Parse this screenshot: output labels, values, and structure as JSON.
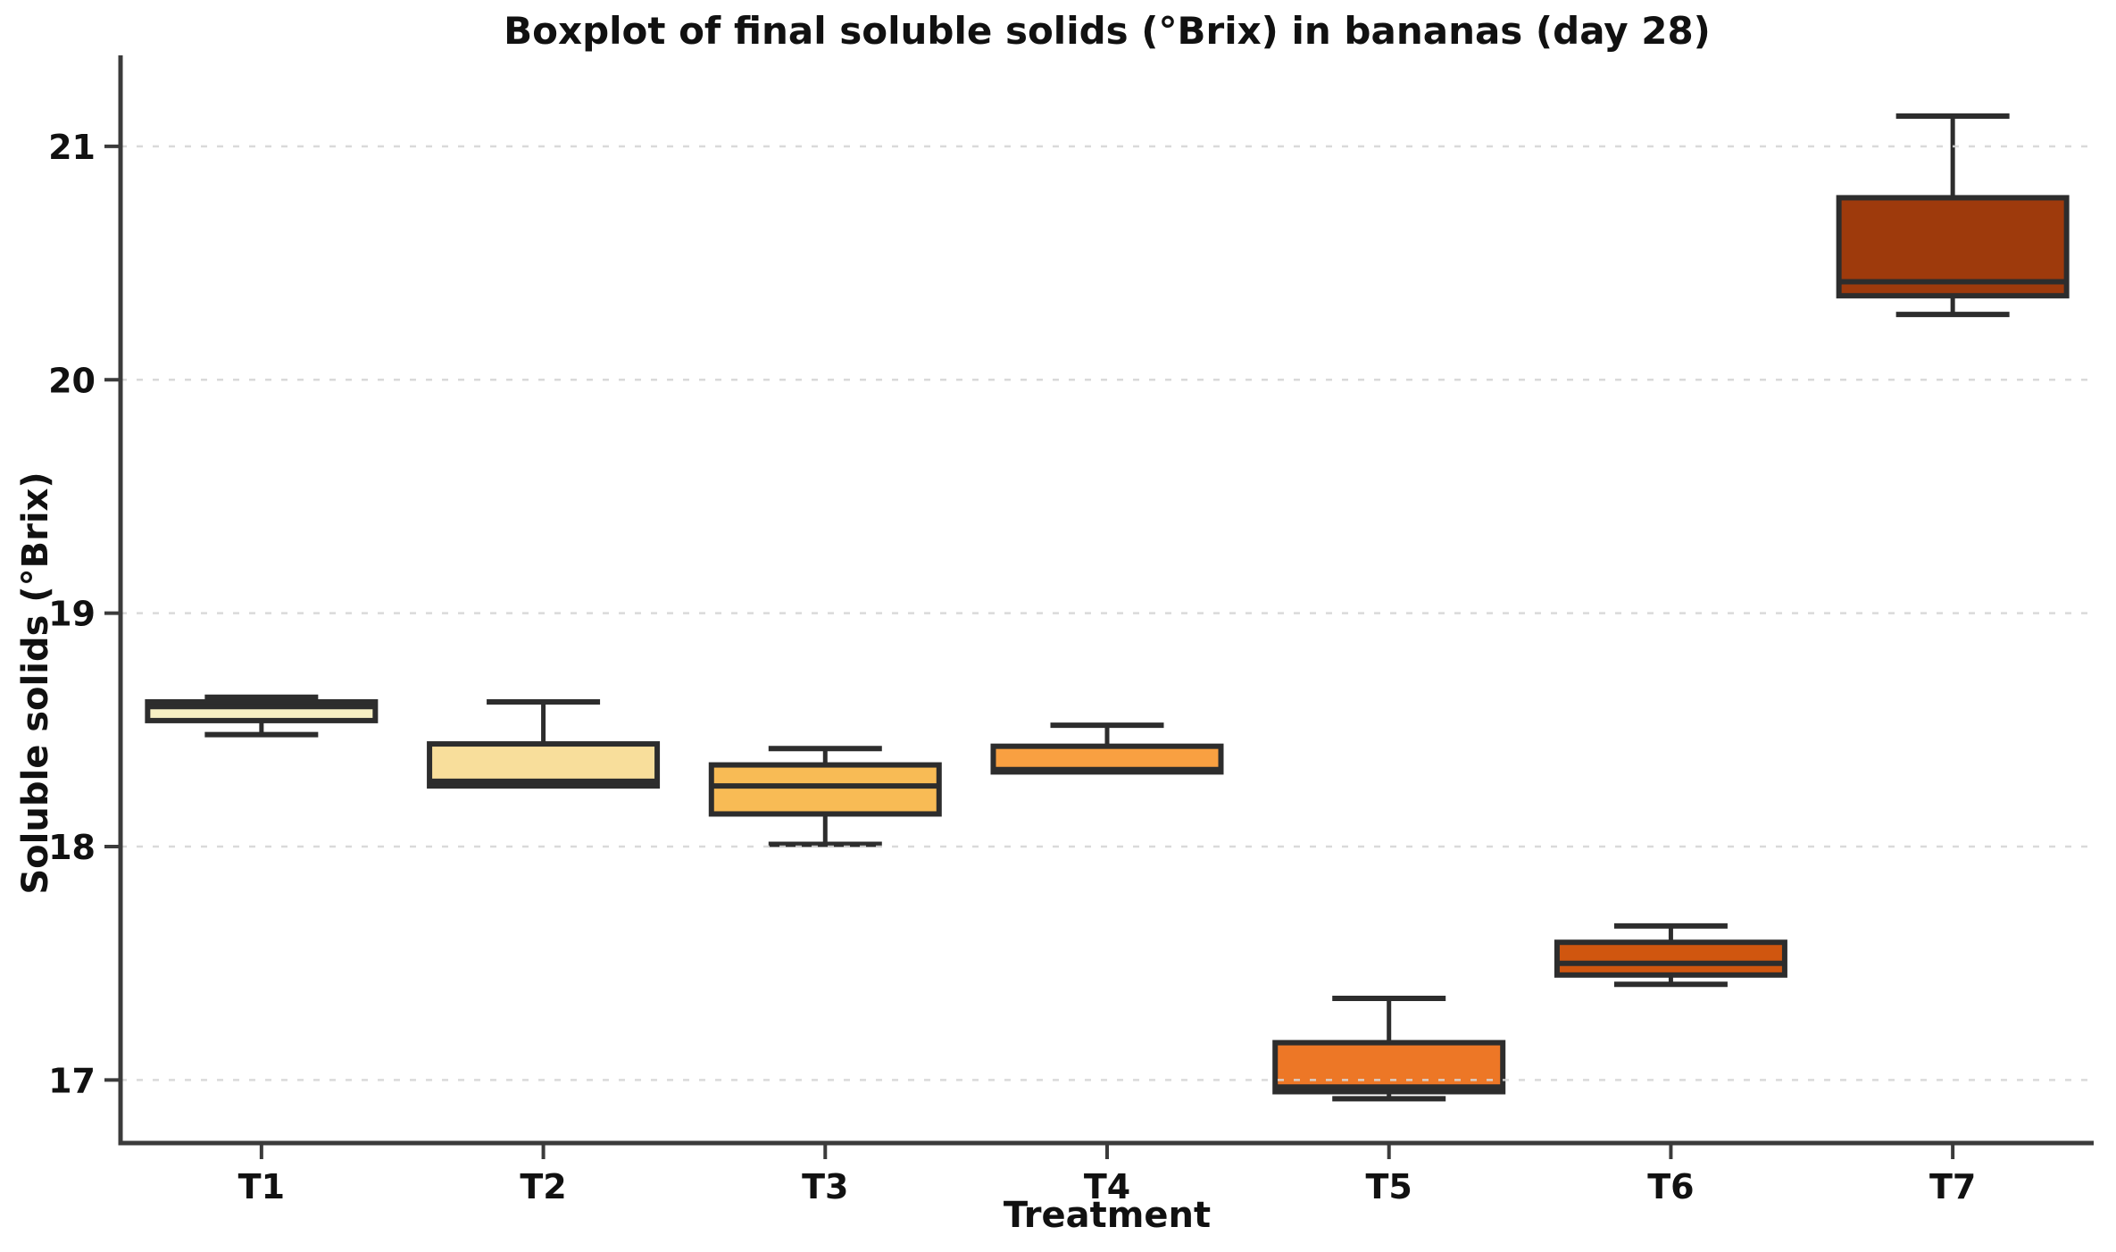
{
  "chart_data": {
    "type": "boxplot",
    "title": "Boxplot of final soluble solids (°Brix) in bananas (day 28)",
    "xlabel": "Treatment",
    "ylabel": "Soluble solids (°Brix)",
    "categories": [
      "T1",
      "T2",
      "T3",
      "T4",
      "T5",
      "T6",
      "T7"
    ],
    "yticks": [
      17,
      18,
      19,
      20,
      21
    ],
    "ylim": [
      16.73,
      21.39
    ],
    "grid": "horizontal-dashed-on-top",
    "legend": "none",
    "series": [
      {
        "category": "T1",
        "whisker_low": 18.48,
        "q1": 18.54,
        "median": 18.6,
        "q3": 18.62,
        "whisker_high": 18.64,
        "color": "#F6EFC3"
      },
      {
        "category": "T2",
        "whisker_low": 18.26,
        "q1": 18.26,
        "median": 18.28,
        "q3": 18.44,
        "whisker_high": 18.62,
        "color": "#F8DE9B"
      },
      {
        "category": "T3",
        "whisker_low": 18.01,
        "q1": 18.14,
        "median": 18.26,
        "q3": 18.35,
        "whisker_high": 18.42,
        "color": "#F8BB55"
      },
      {
        "category": "T4",
        "whisker_low": 18.32,
        "q1": 18.32,
        "median": 18.33,
        "q3": 18.43,
        "whisker_high": 18.52,
        "color": "#F9A041"
      },
      {
        "category": "T5",
        "whisker_low": 16.92,
        "q1": 16.95,
        "median": 16.97,
        "q3": 17.16,
        "whisker_high": 17.35,
        "color": "#ED7726"
      },
      {
        "category": "T6",
        "whisker_low": 17.41,
        "q1": 17.45,
        "median": 17.5,
        "q3": 17.59,
        "whisker_high": 17.66,
        "color": "#D0560F"
      },
      {
        "category": "T7",
        "whisker_low": 20.28,
        "q1": 20.36,
        "median": 20.42,
        "q3": 20.78,
        "whisker_high": 21.13,
        "color": "#9E3A0C"
      }
    ],
    "colors": {
      "edge": "#2d2d2d",
      "spine": "#3b3b3b",
      "grid": "#d7d7d7",
      "text": "#111111",
      "background": "#ffffff"
    }
  }
}
